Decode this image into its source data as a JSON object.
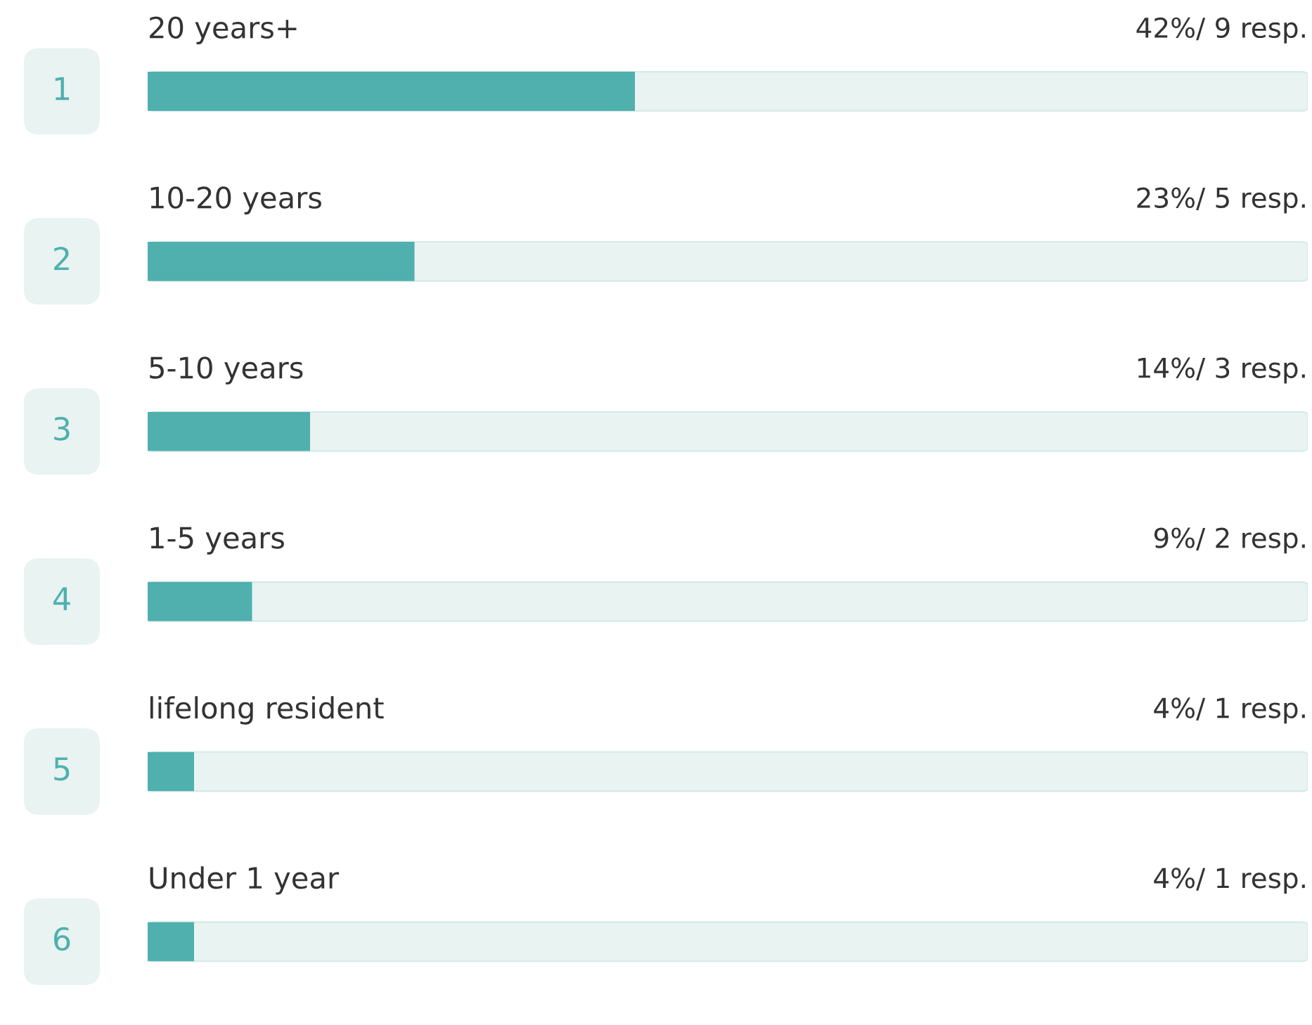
{
  "chart_data": {
    "type": "bar",
    "orientation": "horizontal",
    "categories": [
      "20 years+",
      "10-20 years",
      "5-10 years",
      "1-5 years",
      "lifelong resident",
      "Under 1 year"
    ],
    "values": [
      42,
      23,
      14,
      9,
      4,
      4
    ],
    "color": "#4fb0ae",
    "value_labels": [
      "42%/ 9 resp.",
      "23%/ 5 resp.",
      "14%/ 3 resp.",
      "9%/ 2 resp.",
      "4%/ 1 resp.",
      "4%/ 1 resp."
    ],
    "annotations": [
      "1",
      "2",
      "3",
      "4",
      "5",
      "6"
    ],
    "xlim": [
      0,
      100
    ]
  }
}
